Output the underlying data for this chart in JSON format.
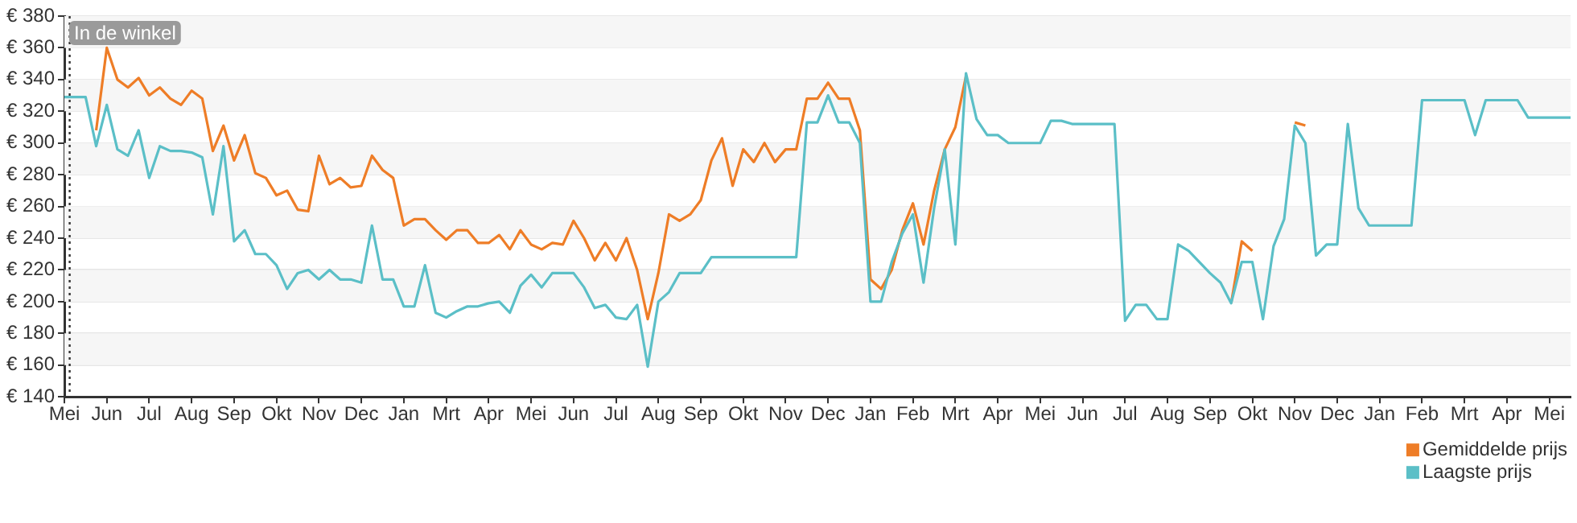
{
  "chart_data": {
    "type": "line",
    "categories": [
      "Mei",
      null,
      null,
      null,
      "Jun",
      null,
      null,
      null,
      "Jul",
      null,
      null,
      null,
      "Aug",
      null,
      null,
      null,
      "Sep",
      null,
      null,
      null,
      "Okt",
      null,
      null,
      null,
      "Nov",
      null,
      null,
      null,
      "Dec",
      null,
      null,
      null,
      "Jan",
      null,
      null,
      null,
      "Mrt",
      null,
      null,
      null,
      "Apr",
      null,
      null,
      null,
      "Mei",
      null,
      null,
      null,
      "Jun",
      null,
      null,
      null,
      "Jul",
      null,
      null,
      null,
      "Aug",
      null,
      null,
      null,
      "Sep",
      null,
      null,
      null,
      "Okt",
      null,
      null,
      null,
      "Nov",
      null,
      null,
      null,
      "Dec",
      null,
      null,
      null,
      "Jan",
      null,
      null,
      null,
      "Feb",
      null,
      null,
      null,
      "Mrt",
      null,
      null,
      null,
      "Apr",
      null,
      null,
      null,
      "Mei",
      null,
      null,
      null,
      "Jun",
      null,
      null,
      null,
      "Jul",
      null,
      null,
      null,
      "Aug",
      null,
      null,
      null,
      "Sep",
      null,
      null,
      null,
      "Okt",
      null,
      null,
      null,
      "Nov",
      null,
      null,
      null,
      "Dec",
      null,
      null,
      null,
      "Jan",
      null,
      null,
      null,
      "Feb",
      null,
      null,
      null,
      "Mrt",
      null,
      null,
      null,
      "Apr",
      null,
      null,
      null,
      "Mei",
      null,
      null
    ],
    "ylim": [
      140,
      380
    ],
    "yticks": [
      {
        "value": 140,
        "label": "€ 140"
      },
      {
        "value": 160,
        "label": "€ 160"
      },
      {
        "value": 180,
        "label": "€ 180"
      },
      {
        "value": 200,
        "label": "€ 200"
      },
      {
        "value": 220,
        "label": "€ 220"
      },
      {
        "value": 240,
        "label": "€ 240"
      },
      {
        "value": 260,
        "label": "€ 260"
      },
      {
        "value": 280,
        "label": "€ 280"
      },
      {
        "value": 300,
        "label": "€ 300"
      },
      {
        "value": 320,
        "label": "€ 320"
      },
      {
        "value": 340,
        "label": "€ 340"
      },
      {
        "value": 360,
        "label": "€ 360"
      },
      {
        "value": 380,
        "label": "€ 380"
      }
    ],
    "grid": "y",
    "legend": "bottom right",
    "marker": "none",
    "line_style": "solid",
    "ref_lines": [
      {
        "axis": "x",
        "value": "Mei",
        "label": "In de winkel",
        "line_style": "dotted",
        "color": "#333333"
      }
    ],
    "series": [
      {
        "name": "Gemiddelde prijs",
        "color": "#ee7d27",
        "values": [
          null,
          null,
          null,
          308,
          360,
          340,
          335,
          341,
          330,
          335,
          328,
          324,
          333,
          328,
          295,
          311,
          289,
          305,
          281,
          278,
          267,
          270,
          258,
          257,
          292,
          274,
          278,
          272,
          273,
          292,
          283,
          278,
          248,
          252,
          252,
          245,
          239,
          245,
          245,
          237,
          237,
          242,
          233,
          245,
          236,
          233,
          237,
          236,
          251,
          240,
          226,
          237,
          226,
          240,
          220,
          189,
          218,
          255,
          251,
          255,
          264,
          289,
          303,
          273,
          296,
          288,
          300,
          288,
          296,
          296,
          328,
          328,
          338,
          328,
          328,
          308,
          214,
          208,
          220,
          245,
          262,
          236,
          270,
          296,
          310,
          342,
          null,
          null,
          null,
          null,
          null,
          null,
          null,
          null,
          null,
          null,
          null,
          null,
          null,
          null,
          null,
          null,
          null,
          null,
          null,
          null,
          null,
          null,
          null,
          null,
          199,
          238,
          232,
          null,
          null,
          null,
          313,
          311,
          null,
          null,
          null,
          null,
          null,
          null,
          null,
          null,
          null,
          null,
          null,
          null,
          null,
          null,
          null,
          null,
          null,
          null,
          null,
          null,
          null,
          null,
          null,
          null,
          null
        ]
      },
      {
        "name": "Laagste prijs",
        "color": "#5bbfc7",
        "values": [
          329,
          329,
          329,
          298,
          324,
          296,
          292,
          308,
          278,
          298,
          295,
          295,
          294,
          291,
          255,
          298,
          238,
          245,
          230,
          230,
          223,
          208,
          218,
          220,
          214,
          220,
          214,
          214,
          212,
          248,
          214,
          214,
          197,
          197,
          223,
          193,
          190,
          194,
          197,
          197,
          199,
          200,
          193,
          210,
          217,
          209,
          218,
          218,
          218,
          209,
          196,
          198,
          190,
          189,
          198,
          159,
          200,
          206,
          218,
          218,
          218,
          228,
          228,
          228,
          228,
          228,
          228,
          228,
          228,
          228,
          313,
          313,
          330,
          313,
          313,
          300,
          200,
          200,
          225,
          243,
          255,
          212,
          259,
          296,
          236,
          344,
          315,
          305,
          305,
          300,
          300,
          300,
          300,
          314,
          314,
          312,
          312,
          312,
          312,
          312,
          188,
          198,
          198,
          189,
          189,
          236,
          232,
          225,
          218,
          212,
          199,
          225,
          225,
          189,
          235,
          252,
          311,
          300,
          229,
          236,
          236,
          312,
          259,
          248,
          248,
          248,
          248,
          248,
          327,
          327,
          327,
          327,
          327,
          305,
          327,
          327,
          327,
          327,
          316,
          316,
          316,
          316,
          316
        ]
      }
    ]
  }
}
